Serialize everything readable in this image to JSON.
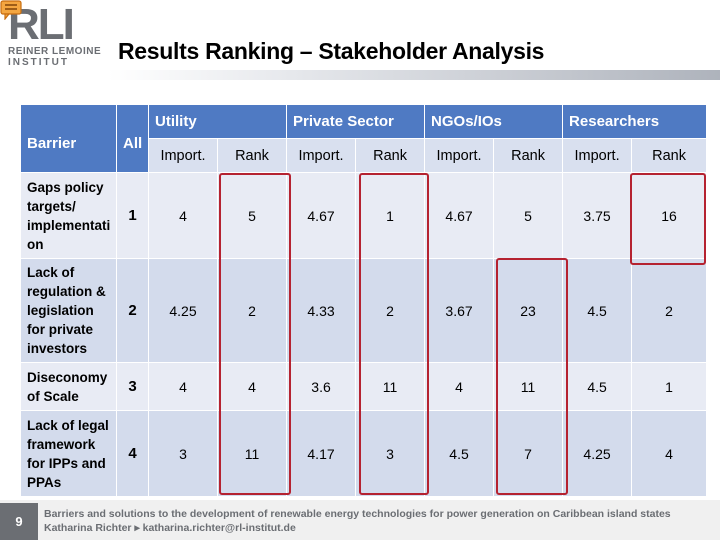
{
  "logo": {
    "abbrev": "RLI",
    "line1": "REINER LEMOINE",
    "line2": "INSTITUT"
  },
  "title": "Results Ranking – Stakeholder Analysis",
  "table": {
    "header": {
      "barrier": "Barrier",
      "all": "All",
      "groups": [
        "Utility",
        "Private Sector",
        "NGOs/IOs",
        "Researchers"
      ]
    },
    "subheader": [
      "Import.",
      "Rank",
      "Import.",
      "Rank",
      "Import.",
      "Rank",
      "Import.",
      "Rank"
    ],
    "rows": [
      {
        "barrier": [
          "Gaps policy",
          "targets/",
          "implementati",
          "on"
        ],
        "all": "1",
        "values": [
          "4",
          "5",
          "4.67",
          "1",
          "4.67",
          "5",
          "3.75",
          "16"
        ]
      },
      {
        "barrier": [
          "Lack of",
          "regulation &",
          "legislation",
          "for private",
          "investors"
        ],
        "all": "2",
        "values": [
          "4.25",
          "2",
          "4.33",
          "2",
          "3.67",
          "23",
          "4.5",
          "2"
        ]
      },
      {
        "barrier": [
          "Diseconomy",
          "of Scale"
        ],
        "all": "3",
        "values": [
          "4",
          "4",
          "3.6",
          "11",
          "4",
          "11",
          "4.5",
          "1"
        ]
      },
      {
        "barrier": [
          "Lack of legal",
          "framework",
          "for IPPs and",
          "PPAs"
        ],
        "all": "4",
        "values": [
          "3",
          "11",
          "4.17",
          "3",
          "4.5",
          "7",
          "4.25",
          "4"
        ]
      }
    ]
  },
  "highlight_color": "#b52230",
  "footer": {
    "page_number": "9",
    "line1": "Barriers and solutions to the development of renewable energy technologies for power generation on Caribbean island states",
    "line2": "Katharina Richter ▸ katharina.richter@rl-institut.de"
  }
}
